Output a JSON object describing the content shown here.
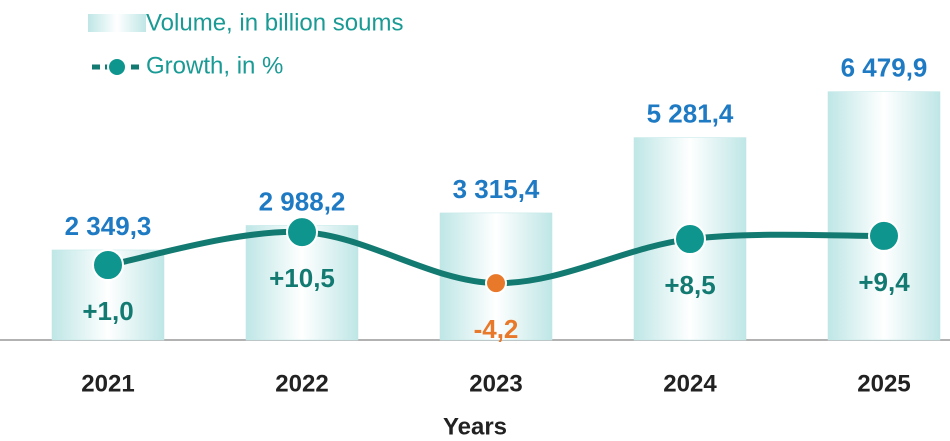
{
  "chart_data": {
    "type": "bar_line",
    "xlabel": "Years",
    "categories": [
      "2021",
      "2022",
      "2023",
      "2024",
      "2025"
    ],
    "series": [
      {
        "name": "Volume, in billion soums",
        "type": "bar",
        "color": "#bfe6e6",
        "values": [
          2349.3,
          2988.2,
          3315.4,
          5281.4,
          6479.9
        ],
        "value_labels": [
          "2 349,3",
          "2 988,2",
          "3 315,4",
          "5 281,4",
          "6 479,9"
        ]
      },
      {
        "name": "Growth, in %",
        "type": "line",
        "axis": "y2",
        "color": "#137a72",
        "marker_color": "#0e968e",
        "negative_color": "#e8782a",
        "values": [
          1.0,
          10.5,
          -4.2,
          8.5,
          9.4
        ],
        "value_labels": [
          "+1,0",
          "+10,5",
          "-4,2",
          "+8,5",
          "+9,4"
        ]
      }
    ],
    "ylim": [
      0,
      8870
    ],
    "y2lim": [
      -20.6,
      77.4
    ]
  }
}
